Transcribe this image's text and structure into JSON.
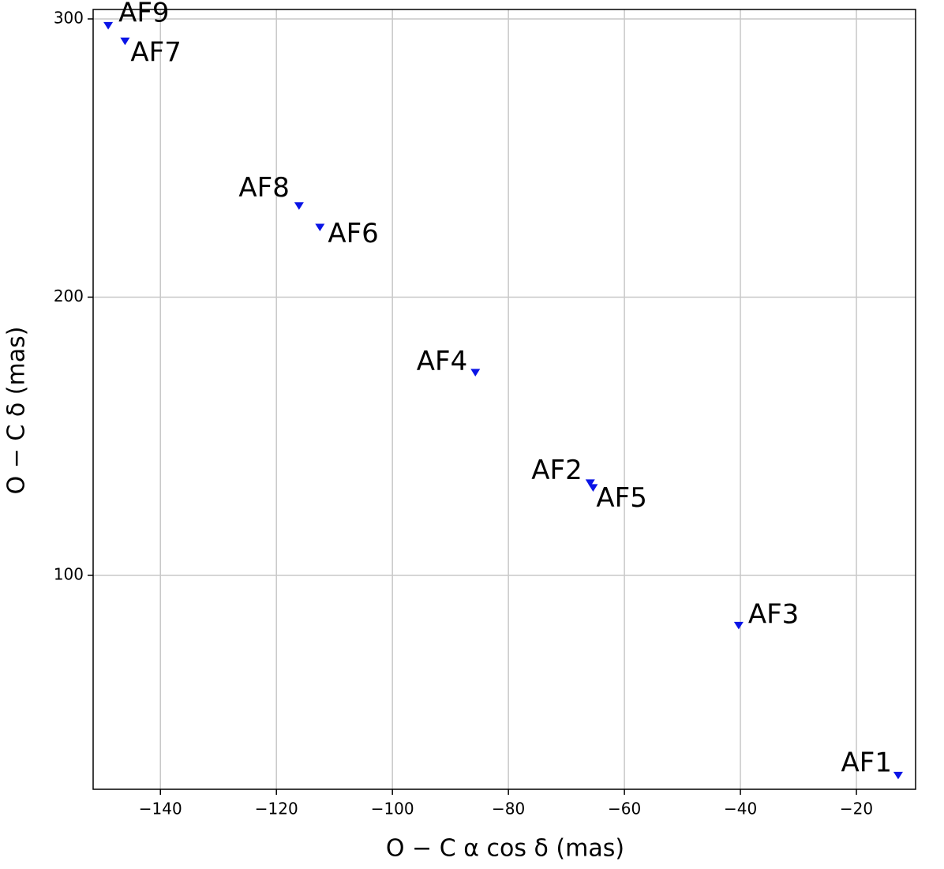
{
  "chart_data": {
    "type": "scatter",
    "x_label": "O − C  α cos δ (mas)",
    "y_label": "O − C  δ (mas)",
    "xlim": [
      -151.6,
      -9.8
    ],
    "ylim": [
      23.1,
      303.4
    ],
    "xticks": [
      {
        "value": -140,
        "label": "−140"
      },
      {
        "value": -120,
        "label": "−120"
      },
      {
        "value": -100,
        "label": "−100"
      },
      {
        "value": -80,
        "label": "−80"
      },
      {
        "value": -60,
        "label": "−60"
      },
      {
        "value": -40,
        "label": "−40"
      },
      {
        "value": -20,
        "label": "−20"
      }
    ],
    "yticks": [
      100,
      200,
      300
    ],
    "grid": true,
    "marker": "triangle-down",
    "color": "#0a14e6",
    "labels": [
      "AF9",
      "AF7",
      "AF8",
      "AF6",
      "AF4",
      "AF2",
      "AF5",
      "AF3",
      "AF1"
    ],
    "x": [
      -149.0,
      -146.1,
      -116.1,
      -112.5,
      -85.7,
      -65.9,
      -65.4,
      -40.3,
      -12.8
    ],
    "y": [
      297.7,
      292.1,
      232.9,
      225.2,
      173.0,
      133.3,
      131.6,
      82.1,
      28.2
    ]
  }
}
